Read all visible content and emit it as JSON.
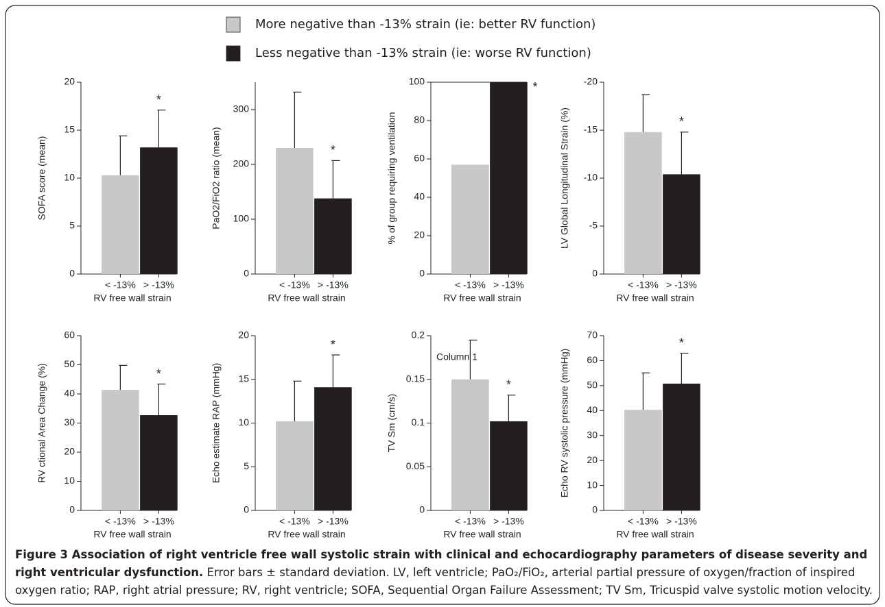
{
  "legend": [
    {
      "name": "More negative than -13% strain (ie: better RV function)",
      "color": "#c8c8c8"
    },
    {
      "name": "Less negative than -13% strain (ie: worse RV function)",
      "color": "#231f20"
    }
  ],
  "chart_data": [
    {
      "type": "bar",
      "ylabel": "SOFA score (mean)",
      "xlabel": "RV free wall strain",
      "categories": [
        "< -13%",
        "> -13%"
      ],
      "values": [
        10.3,
        13.2
      ],
      "errors": [
        4.1,
        3.9
      ],
      "colors": [
        "#c8c8c8",
        "#231f20"
      ],
      "ylim": [
        0,
        20
      ],
      "yticks": [
        0,
        5,
        10,
        15,
        20
      ],
      "annotation": "*"
    },
    {
      "type": "bar",
      "ylabel": "PaO2/FiO2 ratio (mean)",
      "xlabel": "RV free wall strain",
      "categories": [
        "< -13%",
        "> -13%"
      ],
      "values": [
        230,
        138
      ],
      "errors": [
        102,
        69
      ],
      "colors": [
        "#c8c8c8",
        "#231f20"
      ],
      "ylim": [
        0,
        350
      ],
      "yticks": [
        0,
        100,
        200,
        300
      ],
      "annotation": "*"
    },
    {
      "type": "bar",
      "ylabel": "% of group requiring ventilation",
      "xlabel": "RV free wall strain",
      "categories": [
        "< -13%",
        "> -13%"
      ],
      "values": [
        57,
        100
      ],
      "colors": [
        "#c8c8c8",
        "#231f20"
      ],
      "ylim": [
        0,
        100
      ],
      "yticks": [
        0,
        20,
        40,
        60,
        80,
        100
      ],
      "annotation": "*",
      "frame": true
    },
    {
      "type": "bar",
      "ylabel": "LV Global Longitudinal Strain (%)",
      "xlabel": "RV free wall strain",
      "categories": [
        "< -13%",
        "> -13%"
      ],
      "values": [
        -14.8,
        -10.4
      ],
      "errors": [
        3.9,
        4.4
      ],
      "colors": [
        "#c8c8c8",
        "#231f20"
      ],
      "ylim": [
        0,
        -20
      ],
      "yticks": [
        0,
        -5,
        -10,
        -15,
        -20
      ],
      "annotation": "*"
    },
    {
      "type": "bar",
      "ylabel": "RV ctional Area Change (%)",
      "xlabel": "RV free wall strain",
      "categories": [
        "< -13%",
        "> -13%"
      ],
      "values": [
        41.4,
        32.7
      ],
      "errors": [
        8.4,
        10.7
      ],
      "colors": [
        "#c8c8c8",
        "#231f20"
      ],
      "ylim": [
        0,
        60
      ],
      "yticks": [
        0,
        10,
        20,
        30,
        40,
        50,
        60
      ],
      "annotation": "*"
    },
    {
      "type": "bar",
      "ylabel": "Echo estimate RAP (mmHg)",
      "xlabel": "RV free wall strain",
      "categories": [
        "< -13%",
        "> -13%"
      ],
      "values": [
        10.2,
        14.1
      ],
      "errors": [
        4.6,
        3.7
      ],
      "colors": [
        "#c8c8c8",
        "#231f20"
      ],
      "ylim": [
        0,
        20
      ],
      "yticks": [
        0,
        5,
        10,
        15,
        20
      ],
      "annotation": "*"
    },
    {
      "type": "bar",
      "ylabel": "TV Sm (cm/s)",
      "xlabel": "RV free wall strain",
      "categories": [
        "< -13%",
        "> -13%"
      ],
      "values": [
        0.15,
        0.102
      ],
      "errors": [
        0.045,
        0.03
      ],
      "colors": [
        "#c8c8c8",
        "#231f20"
      ],
      "ylim": [
        0,
        0.2
      ],
      "yticks": [
        0,
        0.05,
        0.1,
        0.15,
        0.2
      ],
      "annotation": "*",
      "note": "Column 1"
    },
    {
      "type": "bar",
      "ylabel": "Echo RV systolic pressure (mmHg)",
      "xlabel": "RV free wall strain",
      "categories": [
        "< -13%",
        "> -13%"
      ],
      "values": [
        40.3,
        50.8
      ],
      "errors": [
        14.8,
        12.2
      ],
      "colors": [
        "#c8c8c8",
        "#231f20"
      ],
      "ylim": [
        0,
        70
      ],
      "yticks": [
        0,
        10,
        20,
        30,
        40,
        50,
        60,
        70
      ],
      "annotation": "*"
    }
  ],
  "caption": {
    "title": "Figure 3 Association of right ventricle free wall systolic strain with clinical and echocardiography parameters of disease severity and right ventricular dysfunction.",
    "text": "Error bars ± standard deviation. LV, left ventricle; PaO₂/FiO₂, arterial partial pressure of oxygen/fraction of inspired oxygen ratio; RAP, right atrial pressure; RV, right ventricle; SOFA, Sequential Organ Failure Assessment; TV Sm, Tricuspid valve systolic motion velocity."
  }
}
